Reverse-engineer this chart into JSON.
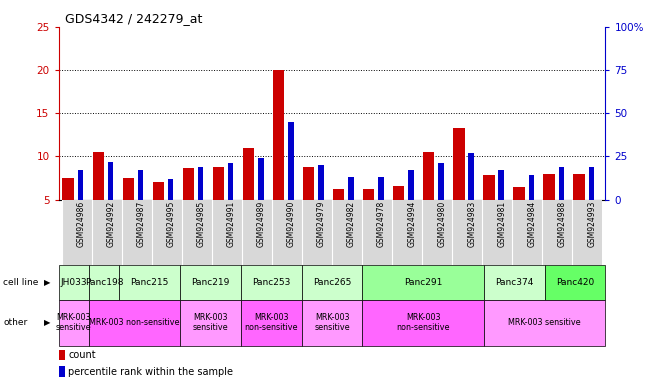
{
  "title": "GDS4342 / 242279_at",
  "samples": [
    "GSM924986",
    "GSM924992",
    "GSM924987",
    "GSM924995",
    "GSM924985",
    "GSM924991",
    "GSM924989",
    "GSM924990",
    "GSM924979",
    "GSM924982",
    "GSM924978",
    "GSM924994",
    "GSM924980",
    "GSM924983",
    "GSM924981",
    "GSM924984",
    "GSM924988",
    "GSM924993"
  ],
  "count_values": [
    7.5,
    10.5,
    7.5,
    7.0,
    8.7,
    8.8,
    11.0,
    20.0,
    8.8,
    6.2,
    6.2,
    6.6,
    10.5,
    13.3,
    7.8,
    6.5,
    8.0,
    8.0
  ],
  "percentile_values": [
    17,
    22,
    17,
    12,
    19,
    21,
    24,
    45,
    20,
    13,
    13,
    17,
    21,
    27,
    17,
    14,
    19,
    19
  ],
  "ymin": 5,
  "ymax": 25,
  "y_ticks_left": [
    5,
    10,
    15,
    20,
    25
  ],
  "y_ticks_right": [
    0,
    25,
    50,
    75,
    100
  ],
  "left_axis_color": "#cc0000",
  "right_axis_color": "#0000cc",
  "bar_color_count": "#cc0000",
  "bar_color_pct": "#0000cc",
  "cell_line_spans": [
    {
      "name": "JH033",
      "cols": [
        0
      ],
      "color": "#ccffcc"
    },
    {
      "name": "Panc198",
      "cols": [
        1
      ],
      "color": "#ccffcc"
    },
    {
      "name": "Panc215",
      "cols": [
        2,
        3
      ],
      "color": "#ccffcc"
    },
    {
      "name": "Panc219",
      "cols": [
        4,
        5
      ],
      "color": "#ccffcc"
    },
    {
      "name": "Panc253",
      "cols": [
        6,
        7
      ],
      "color": "#ccffcc"
    },
    {
      "name": "Panc265",
      "cols": [
        8,
        9
      ],
      "color": "#ccffcc"
    },
    {
      "name": "Panc291",
      "cols": [
        10,
        11,
        12,
        13
      ],
      "color": "#99ff99"
    },
    {
      "name": "Panc374",
      "cols": [
        14,
        15
      ],
      "color": "#ccffcc"
    },
    {
      "name": "Panc420",
      "cols": [
        16,
        17
      ],
      "color": "#66ff66"
    }
  ],
  "other_spans": [
    {
      "name": "MRK-003\nsensitive",
      "cols": [
        0
      ],
      "color": "#ff99ff"
    },
    {
      "name": "MRK-003 non-sensitive",
      "cols": [
        1,
        2,
        3
      ],
      "color": "#ff66ff"
    },
    {
      "name": "MRK-003\nsensitive",
      "cols": [
        4,
        5
      ],
      "color": "#ff99ff"
    },
    {
      "name": "MRK-003\nnon-sensitive",
      "cols": [
        6,
        7
      ],
      "color": "#ff66ff"
    },
    {
      "name": "MRK-003\nsensitive",
      "cols": [
        8,
        9
      ],
      "color": "#ff99ff"
    },
    {
      "name": "MRK-003\nnon-sensitive",
      "cols": [
        10,
        11,
        12,
        13
      ],
      "color": "#ff66ff"
    },
    {
      "name": "MRK-003 sensitive",
      "cols": [
        14,
        15,
        16,
        17
      ],
      "color": "#ff99ff"
    }
  ],
  "bg_color": "#ffffff",
  "tick_label_color_left": "#cc0000",
  "tick_label_color_right": "#0000cc",
  "col_bg_colors": [
    "#e8e8e8",
    "#e8e8e8",
    "#e8e8e8",
    "#e8e8e8",
    "#e8e8e8",
    "#e8e8e8",
    "#e8e8e8",
    "#e8e8e8",
    "#e8e8e8",
    "#e8e8e8",
    "#e8e8e8",
    "#e8e8e8",
    "#e8e8e8",
    "#e8e8e8",
    "#e8e8e8",
    "#e8e8e8",
    "#e8e8e8",
    "#e8e8e8"
  ]
}
